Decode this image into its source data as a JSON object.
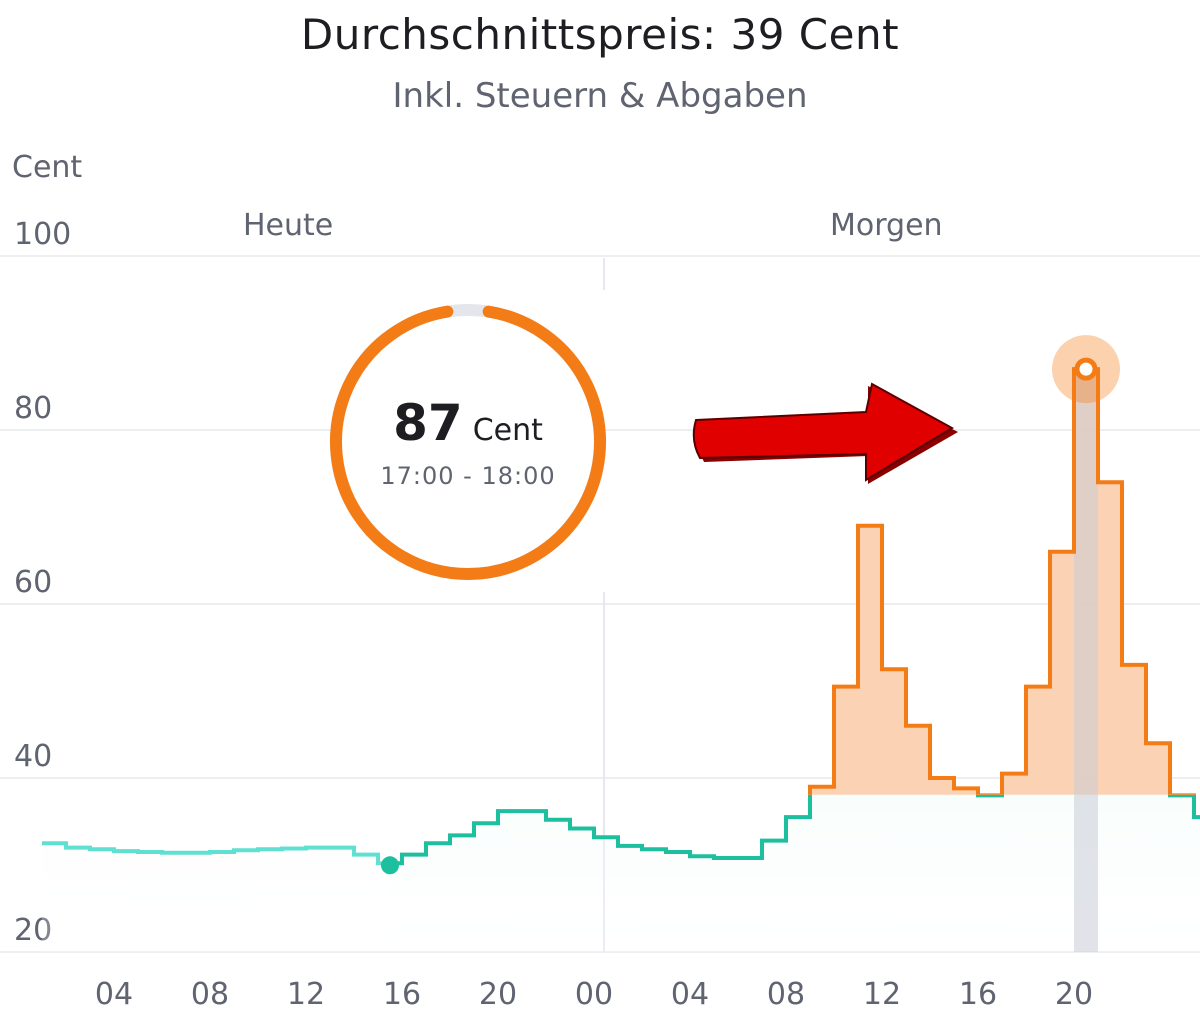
{
  "header": {
    "title": "Durchschnittspreis: 39 Cent",
    "subtitle": "Inkl. Steuern & Abgaben"
  },
  "tooltip": {
    "value": "87",
    "unit": "Cent",
    "time": "17:00 - 18:00"
  },
  "colors": {
    "low": "#1dbf9f",
    "low_past": "#5fe0d0",
    "high": "#f47c16",
    "high_fill": "#fcd0b0",
    "arrow": "#e00000",
    "grid": "#e6e8ee"
  },
  "chart_data": {
    "type": "line",
    "step": true,
    "ylabel": "Cent",
    "ylim": [
      20,
      100
    ],
    "yticks": [
      "20",
      "40",
      "60",
      "80",
      "100"
    ],
    "average": 39,
    "day_labels": [
      "Heute",
      "Morgen"
    ],
    "xtick_labels": [
      "04",
      "08",
      "12",
      "16",
      "20",
      "00",
      "04",
      "08",
      "12",
      "16",
      "20"
    ],
    "now_hour": 14.5,
    "selected": {
      "hour": "17:00 - 18:00",
      "value": 87
    },
    "series": [
      {
        "hourly_values": [
          32.5,
          32.0,
          31.8,
          31.6,
          31.5,
          31.4,
          31.4,
          31.5,
          31.7,
          31.8,
          31.9,
          32.0,
          32.0,
          31.2,
          30.2,
          31.2,
          32.5,
          33.4,
          34.8,
          36.2,
          36.2,
          35.2,
          34.2,
          33.2,
          32.2,
          31.8,
          31.5,
          31.0,
          30.8,
          30.8,
          32.8,
          35.5,
          39.0,
          50.5,
          69.0,
          52.5,
          46.0,
          40.0,
          38.8,
          38.0,
          40.5,
          50.5,
          66.0,
          87.0,
          74.0,
          53.0,
          44.0,
          38.0,
          35.5,
          34.0
        ]
      }
    ]
  }
}
